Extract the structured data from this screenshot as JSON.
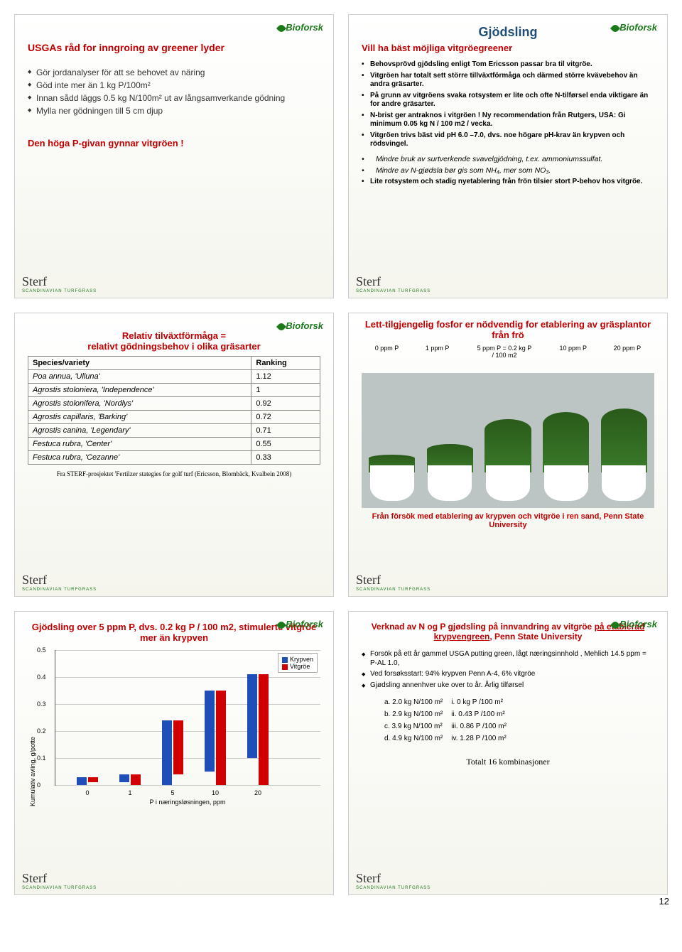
{
  "page_number": "12",
  "logos": {
    "bioforsk": "Bioforsk",
    "sterf": "Sterf",
    "sterf_sub": "SCANDINAVIAN TURFGRASS"
  },
  "slide1": {
    "title": "USGAs råd for inngroing av greener lyder",
    "bullets": [
      "Gör jordanalyser för att se behovet av näring",
      "Göd inte mer än 1 kg P/100m²",
      "Innan sådd läggs 0.5 kg N/100m² ut av långsamverkande gödning",
      "Mylla ner gödningen till 5 cm djup"
    ],
    "bottom": "Den höga P-givan gynnar vitgröen !"
  },
  "slide2": {
    "heading": "Gjödsling",
    "subtitle": "Vill ha bäst möjliga vitgröegreener",
    "bullets": [
      "Behovsprövd gjödsling enligt Tom Ericsson passar bra til vitgröe.",
      "Vitgröen har totalt sett större tillväxtförmåga och därmed större kvävebehov än andra gräsarter.",
      "På grunn av vitgröens svaka rotsystem er lite och ofte N-tilførsel enda viktigare än for andre gräsarter.",
      "N-brist ger antraknos i vitgröen ! Ny recommendation från Rutgers, USA: Gi minimum 0.05 kg N / 100 m2 / vecka.",
      "Vitgröen trivs bäst vid pH 6.0 –7.0, dvs. noe högare pH-krav än krypven och rödsvingel."
    ],
    "sub_bullets": [
      "Mindre bruk av surtverkende svavelgjödning, t.ex. ammoniumssulfat.",
      "Mindre av N-gjødsla bør gis som NH₄, mer som NO₃."
    ],
    "last_bullet": "Lite rotsystem och stadig nyetablering från frön tilsier stort P-behov hos vitgröe."
  },
  "slide3": {
    "title_a": "Relativ tilväxtförmåga =",
    "title_b": "relativt gödningsbehov i olika gräsarter",
    "headers": [
      "Species/variety",
      "Ranking"
    ],
    "rows": [
      [
        "Poa annua, 'Ulluna'",
        "1.12"
      ],
      [
        "Agrostis stoloniera, 'Independence'",
        "1"
      ],
      [
        "Agrostis stolonifera, 'Nordlys'",
        "0.92"
      ],
      [
        "Agrostis capillaris, 'Barking'",
        "0.72"
      ],
      [
        "Agrostis canina, 'Legendary'",
        "0.71"
      ],
      [
        "Festuca rubra, 'Center'",
        "0.55"
      ],
      [
        "Festuca rubra, 'Cezanne'",
        "0.33"
      ]
    ],
    "footnote": "Fra STERF-prosjektet 'Fertilzer stategies for golf turf (Ericsson, Blombäck, Kvalbein 2008)"
  },
  "slide4": {
    "title": "Lett-tilgjengelig fosfor er nödvendig for etablering av gräsplantor från frö",
    "pot_labels": [
      "0 ppm P",
      "1 ppm P",
      "5 ppm P = 0.2 kg P / 100 m2",
      "10 ppm P",
      "20 ppm P"
    ],
    "grass_heights": [
      25,
      40,
      75,
      85,
      90
    ],
    "caption": "Från försök med etablering av krypven och vitgröe i ren sand, Penn State University"
  },
  "slide5": {
    "title": "Gjödsling over 5 ppm P, dvs. 0.2 kg P / 100 m2, stimulerte vitgröe mer än krypven",
    "ylabel": "Kumulativ avling, g/potte",
    "xlabel": "P i næringsløsningen, ppm",
    "legend": [
      "Krypven",
      "Vitgröe"
    ],
    "colors": {
      "krypven": "#1f4eb8",
      "vitgroe": "#d00000",
      "grid": "#cccccc"
    },
    "yticks": [
      "0",
      "0.1",
      "0.2",
      "0.3",
      "0.4",
      "0.5"
    ],
    "ymax": 0.5,
    "categories": [
      "0",
      "1",
      "5",
      "10",
      "20"
    ],
    "krypven": [
      0.03,
      0.03,
      0.24,
      0.3,
      0.31
    ],
    "vitgroe": [
      0.02,
      0.04,
      0.2,
      0.35,
      0.41
    ]
  },
  "slide6": {
    "title": "Verknad av N og P gjødsling på innvandring av vitgröe på etablerad krypvengreen, Penn State University",
    "bullets": [
      "Forsök på ett år gammel USGA putting green, lågt næringsinnhold , Mehlich 14.5 ppm = P-AL 1.0,",
      "Ved forsøksstart: 94% krypven Penn A-4, 6% vitgröe",
      "Gjødsling annenhver uke over to år. Årlig tilførsel"
    ],
    "treatments_left": [
      "a. 2.0 kg N/100 m²",
      "b. 2.9 kg N/100 m²",
      "c. 3.9 kg N/100 m²",
      "d. 4.9 kg N/100 m²"
    ],
    "treatments_right": [
      "i. 0 kg P /100 m²",
      "ii. 0.43 P /100 m²",
      "iii. 0.86 P /100 m²",
      "iv. 1.28 P /100 m²"
    ],
    "total": "Totalt 16 kombinasjoner"
  }
}
